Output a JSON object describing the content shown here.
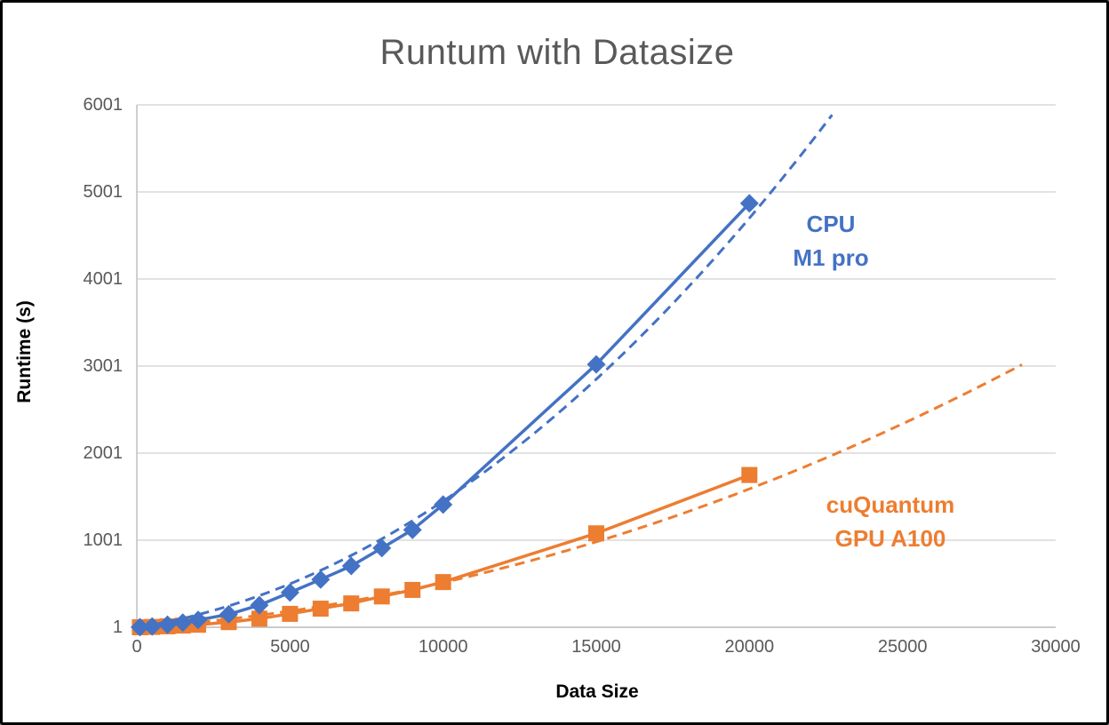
{
  "frame": {
    "background": "#ffffff",
    "border_color": "#000000"
  },
  "chart_data": {
    "type": "line",
    "title": "Runtum with Datasize",
    "xlabel": "Data Size",
    "ylabel": "Runtime (s)",
    "xlim": [
      0,
      30000
    ],
    "ylim": [
      1,
      6001
    ],
    "x_ticks": [
      0,
      5000,
      10000,
      15000,
      20000,
      25000,
      30000
    ],
    "y_ticks": [
      1,
      1001,
      2001,
      3001,
      4001,
      5001,
      6001
    ],
    "grid": "horizontal-only",
    "legend_position": "inline-data-labels",
    "colors": {
      "grid": "#D9D9D9",
      "axis": "#BFBFBF",
      "tick_text": "#595959",
      "title_text": "#595959",
      "axis_title_text": "#000000"
    },
    "series": [
      {
        "name": "CPU M1 pro",
        "label_lines": [
          "CPU",
          "M1 pro"
        ],
        "color": "#4472C4",
        "marker": "diamond",
        "line_style": "solid",
        "x": [
          100,
          500,
          1000,
          1500,
          2000,
          3000,
          4000,
          5000,
          6000,
          7000,
          8000,
          9000,
          10000,
          15000,
          20000
        ],
        "y": [
          2,
          10,
          30,
          55,
          85,
          150,
          255,
          400,
          550,
          705,
          910,
          1120,
          1410,
          3020,
          4870
        ],
        "trendline": {
          "style": "dashed",
          "model": "quadratic",
          "a": 9e-06,
          "b": 0.055,
          "x_start": 0,
          "x_end": 22700,
          "y_end": 5890
        }
      },
      {
        "name": "cuQuantum GPU A100",
        "label_lines": [
          "cuQuantum",
          "GPU A100"
        ],
        "color": "#ED7D31",
        "marker": "square",
        "line_style": "solid",
        "x": [
          100,
          500,
          1000,
          1500,
          2000,
          3000,
          4000,
          5000,
          6000,
          7000,
          8000,
          9000,
          10000,
          15000,
          20000
        ],
        "y": [
          1,
          5,
          12,
          20,
          30,
          60,
          100,
          155,
          215,
          275,
          355,
          430,
          520,
          1080,
          1750
        ],
        "trendline": {
          "style": "dashed",
          "model": "quadratic",
          "a": 2.8e-06,
          "b": 0.0235,
          "x_start": 0,
          "x_end": 28900,
          "y_end": 3020
        }
      }
    ]
  }
}
